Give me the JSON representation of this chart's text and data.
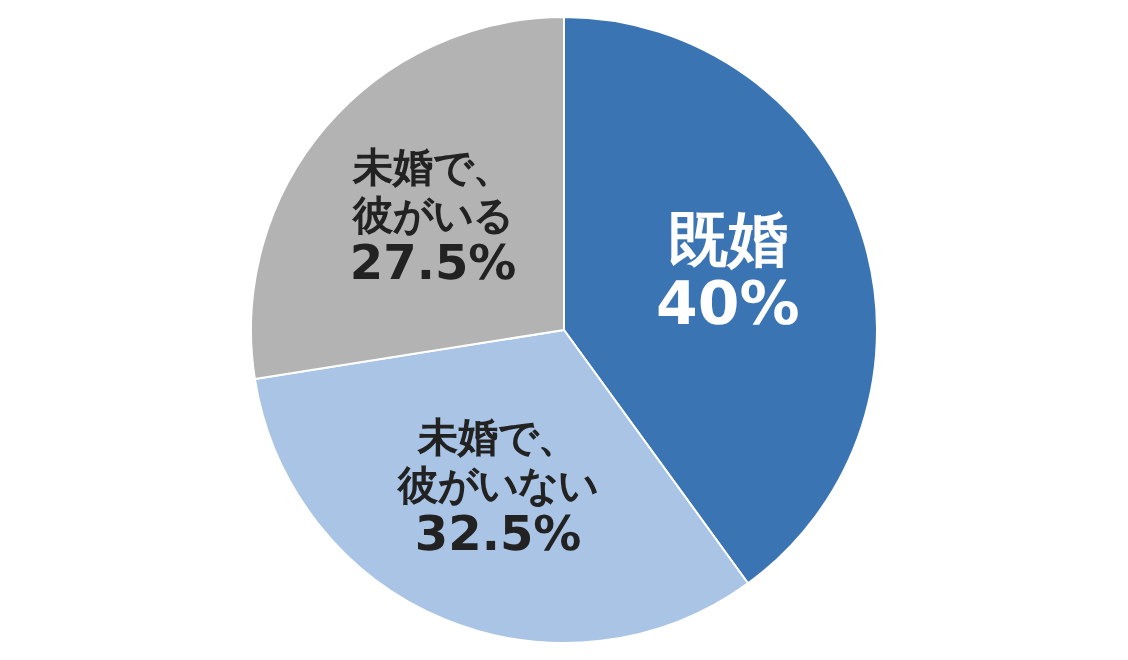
{
  "chart_data": {
    "type": "pie",
    "categories": [
      "既婚",
      "未婚で、彼がいない",
      "未婚で、彼がいる"
    ],
    "values": [
      40,
      32.5,
      27.5
    ],
    "colors": [
      "#3b74b3",
      "#a9c4e4",
      "#b3b3b3"
    ],
    "value_labels": [
      "40%",
      "32.5%",
      "27.5%"
    ],
    "legend": false
  }
}
